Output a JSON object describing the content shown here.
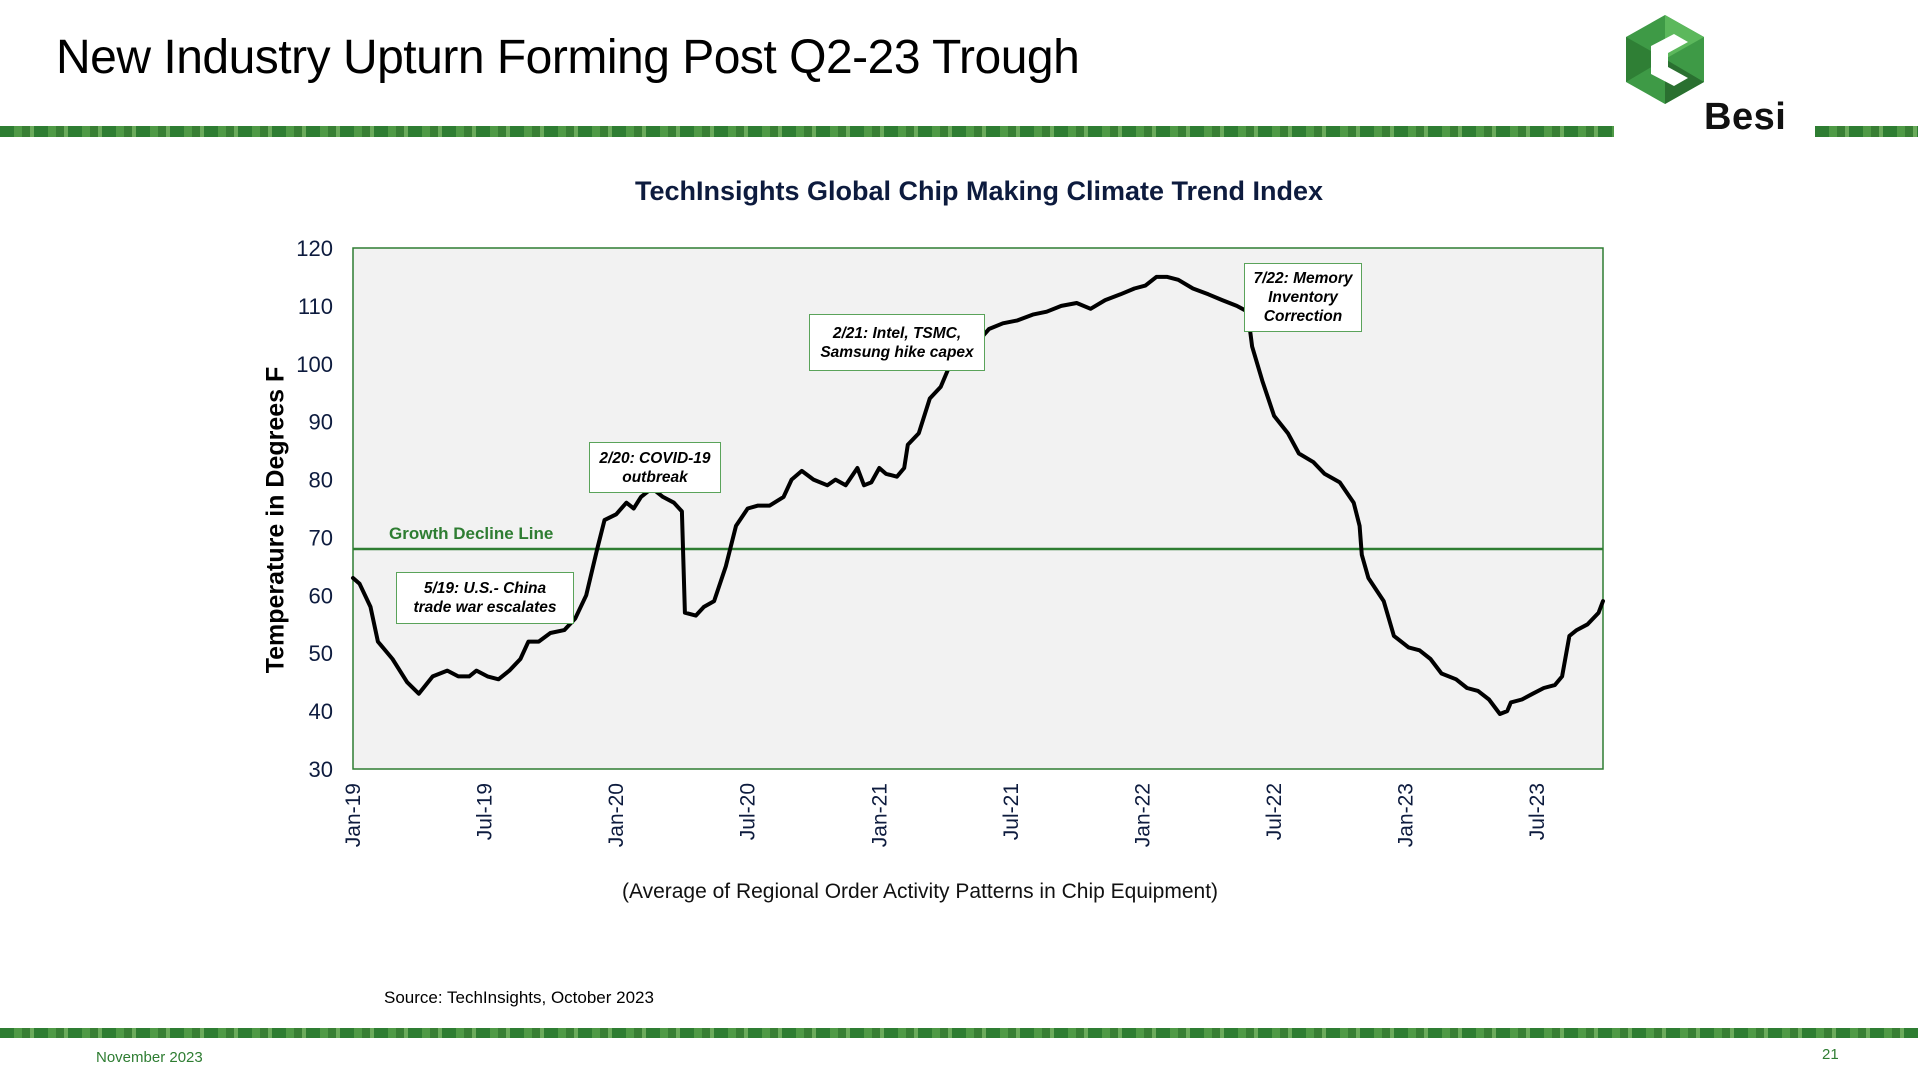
{
  "slide": {
    "title": "New Industry Upturn Forming Post Q2-23 Trough",
    "logo_text": "Besi",
    "source": "Source: TechInsights, October 2023",
    "footer_date": "November 2023",
    "page_number": "21"
  },
  "colors": {
    "brand_green": "#2e7d32",
    "plot_background": "#f2f2f2",
    "line": "#000000",
    "title_navy": "#0d1b3e"
  },
  "chart_data": {
    "type": "line",
    "title": "TechInsights Global Chip Making Climate Trend Index",
    "ylabel": "Temperature in Degrees F",
    "xlabel": "(Average of Regional Order Activity Patterns in Chip Equipment)",
    "ylim": [
      30,
      120
    ],
    "yticks": [
      30,
      40,
      50,
      60,
      70,
      80,
      90,
      100,
      110,
      120
    ],
    "xlim": [
      "2019-01",
      "2023-10"
    ],
    "xticks": [
      {
        "date": "2019-01",
        "label": "Jan-19"
      },
      {
        "date": "2019-07",
        "label": "Jul-19"
      },
      {
        "date": "2020-01",
        "label": "Jan-20"
      },
      {
        "date": "2020-07",
        "label": "Jul-20"
      },
      {
        "date": "2021-01",
        "label": "Jan-21"
      },
      {
        "date": "2021-07",
        "label": "Jul-21"
      },
      {
        "date": "2022-01",
        "label": "Jan-22"
      },
      {
        "date": "2022-07",
        "label": "Jul-22"
      },
      {
        "date": "2023-01",
        "label": "Jan-23"
      },
      {
        "date": "2023-07",
        "label": "Jul-23"
      }
    ],
    "grid": false,
    "reference_line": {
      "label": "Growth Decline Line",
      "value": 68
    },
    "series": [
      {
        "points": [
          [
            "2019-01-01",
            63
          ],
          [
            "2019-01-10",
            62
          ],
          [
            "2019-01-25",
            58
          ],
          [
            "2019-02-05",
            52
          ],
          [
            "2019-02-25",
            49
          ],
          [
            "2019-03-15",
            45
          ],
          [
            "2019-04-01",
            43
          ],
          [
            "2019-04-20",
            46
          ],
          [
            "2019-05-10",
            47
          ],
          [
            "2019-05-25",
            46
          ],
          [
            "2019-06-10",
            46
          ],
          [
            "2019-06-20",
            47
          ],
          [
            "2019-07-05",
            46
          ],
          [
            "2019-07-20",
            45.5
          ],
          [
            "2019-08-05",
            47
          ],
          [
            "2019-08-20",
            49
          ],
          [
            "2019-09-01",
            52
          ],
          [
            "2019-09-15",
            52
          ],
          [
            "2019-10-01",
            53.5
          ],
          [
            "2019-10-20",
            54
          ],
          [
            "2019-11-05",
            56
          ],
          [
            "2019-11-20",
            60
          ],
          [
            "2019-12-05",
            68
          ],
          [
            "2019-12-15",
            73
          ],
          [
            "2020-01-01",
            74
          ],
          [
            "2020-01-15",
            76
          ],
          [
            "2020-01-25",
            75
          ],
          [
            "2020-02-05",
            77
          ],
          [
            "2020-02-20",
            78.5
          ],
          [
            "2020-03-05",
            77
          ],
          [
            "2020-03-20",
            76
          ],
          [
            "2020-04-01",
            74.5
          ],
          [
            "2020-04-05",
            57
          ],
          [
            "2020-04-20",
            56.5
          ],
          [
            "2020-05-01",
            58
          ],
          [
            "2020-05-15",
            59
          ],
          [
            "2020-06-01",
            65
          ],
          [
            "2020-06-15",
            72
          ],
          [
            "2020-07-01",
            75
          ],
          [
            "2020-07-15",
            75.5
          ],
          [
            "2020-08-01",
            75.5
          ],
          [
            "2020-08-20",
            77
          ],
          [
            "2020-09-01",
            80
          ],
          [
            "2020-09-15",
            81.5
          ],
          [
            "2020-10-01",
            80
          ],
          [
            "2020-10-20",
            79
          ],
          [
            "2020-11-01",
            80
          ],
          [
            "2020-11-15",
            79
          ],
          [
            "2020-12-01",
            82
          ],
          [
            "2020-12-10",
            79
          ],
          [
            "2020-12-20",
            79.5
          ],
          [
            "2021-01-01",
            82
          ],
          [
            "2021-01-10",
            81
          ],
          [
            "2021-01-25",
            80.5
          ],
          [
            "2021-02-05",
            82
          ],
          [
            "2021-02-10",
            86
          ],
          [
            "2021-02-25",
            88
          ],
          [
            "2021-03-10",
            94
          ],
          [
            "2021-03-25",
            96
          ],
          [
            "2021-04-05",
            99
          ],
          [
            "2021-04-20",
            101
          ],
          [
            "2021-05-10",
            103
          ],
          [
            "2021-06-01",
            106
          ],
          [
            "2021-06-20",
            107
          ],
          [
            "2021-07-10",
            107.5
          ],
          [
            "2021-08-01",
            108.5
          ],
          [
            "2021-08-20",
            109
          ],
          [
            "2021-09-10",
            110
          ],
          [
            "2021-10-01",
            110.5
          ],
          [
            "2021-10-20",
            109.5
          ],
          [
            "2021-11-10",
            111
          ],
          [
            "2021-12-01",
            112
          ],
          [
            "2021-12-20",
            113
          ],
          [
            "2022-01-05",
            113.5
          ],
          [
            "2022-01-20",
            115
          ],
          [
            "2022-02-05",
            115
          ],
          [
            "2022-02-20",
            114.5
          ],
          [
            "2022-03-10",
            113
          ],
          [
            "2022-04-01",
            112
          ],
          [
            "2022-04-20",
            111
          ],
          [
            "2022-05-10",
            110
          ],
          [
            "2022-05-25",
            109
          ],
          [
            "2022-06-01",
            103
          ],
          [
            "2022-06-15",
            97
          ],
          [
            "2022-07-01",
            91
          ],
          [
            "2022-07-20",
            88
          ],
          [
            "2022-08-05",
            84.5
          ],
          [
            "2022-08-25",
            83
          ],
          [
            "2022-09-10",
            81
          ],
          [
            "2022-10-01",
            79.5
          ],
          [
            "2022-10-20",
            76
          ],
          [
            "2022-10-28",
            72
          ],
          [
            "2022-11-01",
            67
          ],
          [
            "2022-11-10",
            63
          ],
          [
            "2022-12-01",
            59
          ],
          [
            "2022-12-15",
            53
          ],
          [
            "2023-01-05",
            51
          ],
          [
            "2023-01-20",
            50.5
          ],
          [
            "2023-02-05",
            49
          ],
          [
            "2023-02-20",
            46.5
          ],
          [
            "2023-03-10",
            45.5
          ],
          [
            "2023-03-25",
            44
          ],
          [
            "2023-04-10",
            43.5
          ],
          [
            "2023-04-25",
            42
          ],
          [
            "2023-05-10",
            39.5
          ],
          [
            "2023-05-20",
            40
          ],
          [
            "2023-05-25",
            41.5
          ],
          [
            "2023-06-10",
            42
          ],
          [
            "2023-06-25",
            43
          ],
          [
            "2023-07-10",
            44
          ],
          [
            "2023-07-25",
            44.5
          ],
          [
            "2023-08-05",
            46
          ],
          [
            "2023-08-15",
            53
          ],
          [
            "2023-08-25",
            54
          ],
          [
            "2023-09-10",
            55
          ],
          [
            "2023-09-25",
            57
          ],
          [
            "2023-10-01",
            59
          ]
        ]
      }
    ],
    "annotations": [
      {
        "text": "5/19: U.S.- China\ntrade war escalates"
      },
      {
        "text": "2/20: COVID-19\noutbreak"
      },
      {
        "text": "2/21: Intel, TSMC,\nSamsung hike capex"
      },
      {
        "text": "7/22: Memory\nInventory\nCorrection"
      }
    ]
  }
}
